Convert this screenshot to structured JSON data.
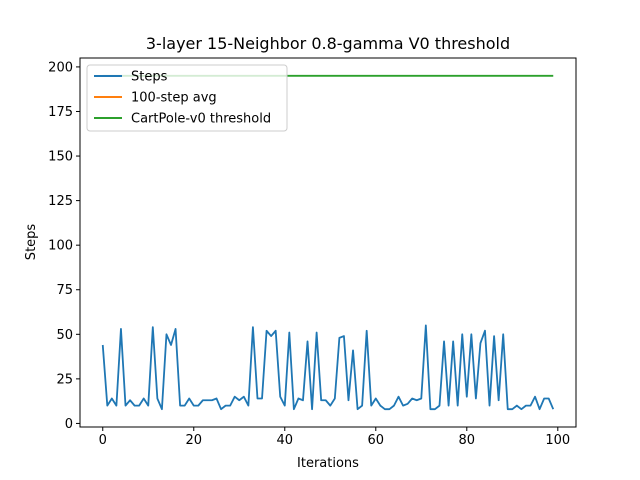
{
  "chart_data": {
    "type": "line",
    "title": "3-layer 15-Neighbor 0.8-gamma V0 threshold",
    "xlabel": "Iterations",
    "ylabel": "Steps",
    "xlim": [
      -5,
      104
    ],
    "ylim": [
      -2,
      205
    ],
    "xticks": [
      0,
      20,
      40,
      60,
      80,
      100
    ],
    "yticks": [
      0,
      25,
      50,
      75,
      100,
      125,
      150,
      175,
      200
    ],
    "grid": false,
    "legend_position": "top-left",
    "series": [
      {
        "name": "Steps",
        "color": "#1f77b4",
        "x": [
          0,
          1,
          2,
          3,
          4,
          5,
          6,
          7,
          8,
          9,
          10,
          11,
          12,
          13,
          14,
          15,
          16,
          17,
          18,
          19,
          20,
          21,
          22,
          23,
          24,
          25,
          26,
          27,
          28,
          29,
          30,
          31,
          32,
          33,
          34,
          35,
          36,
          37,
          38,
          39,
          40,
          41,
          42,
          43,
          44,
          45,
          46,
          47,
          48,
          49,
          50,
          51,
          52,
          53,
          54,
          55,
          56,
          57,
          58,
          59,
          60,
          61,
          62,
          63,
          64,
          65,
          66,
          67,
          68,
          69,
          70,
          71,
          72,
          73,
          74,
          75,
          76,
          77,
          78,
          79,
          80,
          81,
          82,
          83,
          84,
          85,
          86,
          87,
          88,
          89,
          90,
          91,
          92,
          93,
          94,
          95,
          96,
          97,
          98,
          99
        ],
        "values": [
          44,
          10,
          14,
          10,
          53,
          10,
          13,
          10,
          10,
          14,
          10,
          54,
          14,
          8,
          50,
          44,
          53,
          10,
          10,
          14,
          10,
          10,
          13,
          13,
          13,
          14,
          8,
          10,
          10,
          15,
          13,
          15,
          10,
          54,
          14,
          14,
          52,
          49,
          52,
          15,
          10,
          51,
          8,
          14,
          13,
          46,
          8,
          51,
          13,
          13,
          10,
          14,
          48,
          49,
          13,
          41,
          8,
          10,
          52,
          10,
          14,
          10,
          8,
          8,
          10,
          15,
          10,
          11,
          14,
          13,
          14,
          55,
          8,
          8,
          10,
          46,
          10,
          46,
          10,
          50,
          15,
          50,
          14,
          45,
          52,
          10,
          49,
          13,
          50,
          8,
          8,
          10,
          8,
          10,
          10,
          15,
          8,
          14,
          14,
          8
        ]
      },
      {
        "name": "100-step avg",
        "color": "#ff7f0e",
        "x": [],
        "values": []
      },
      {
        "name": "CartPole-v0 threshold",
        "color": "#2ca02c",
        "x": [
          0,
          99
        ],
        "values": [
          195,
          195
        ]
      }
    ]
  }
}
